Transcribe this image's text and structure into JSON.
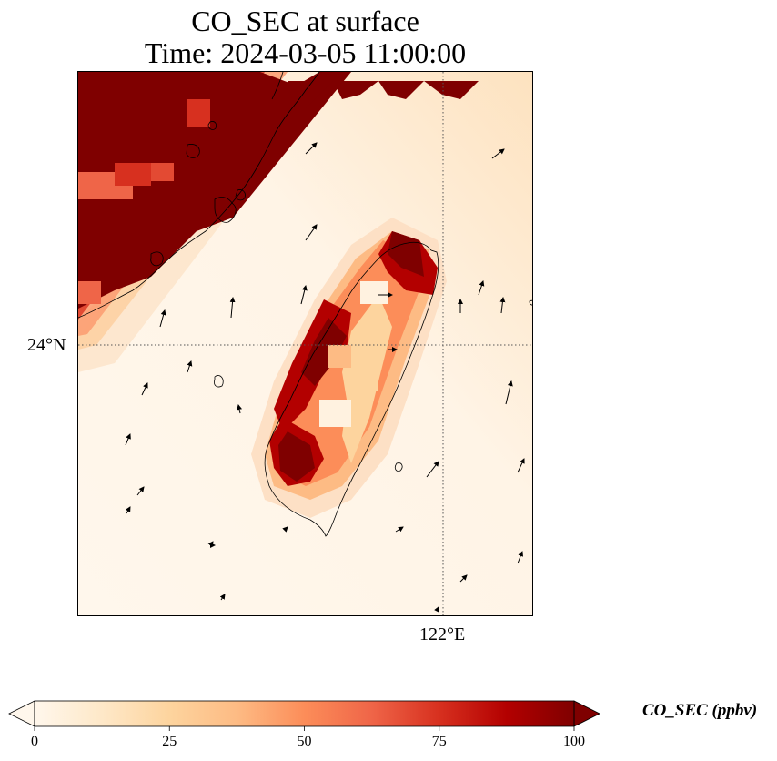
{
  "title": {
    "line1": "CO_SEC at surface",
    "line2": "Time: 2024-03-05 11:00:00"
  },
  "map": {
    "lat_tick_label": "24°N",
    "lon_tick_label": "122°E",
    "gridline_style": "dotted",
    "features": [
      "coastlines",
      "wind-vectors",
      "pollutant-field"
    ],
    "region": "Taiwan and Taiwan Strait",
    "colormap": "OrRd"
  },
  "colorbar": {
    "label": "CO_SEC (ppbv)",
    "ticks": [
      "0",
      "25",
      "50",
      "75",
      "100"
    ],
    "range": [
      0,
      100
    ],
    "extend": "both",
    "colors": [
      "#fff7ec",
      "#fee8c8",
      "#fdd49e",
      "#fdbb84",
      "#fc8d59",
      "#ef6548",
      "#d7301f",
      "#b30000",
      "#7f0000"
    ]
  }
}
